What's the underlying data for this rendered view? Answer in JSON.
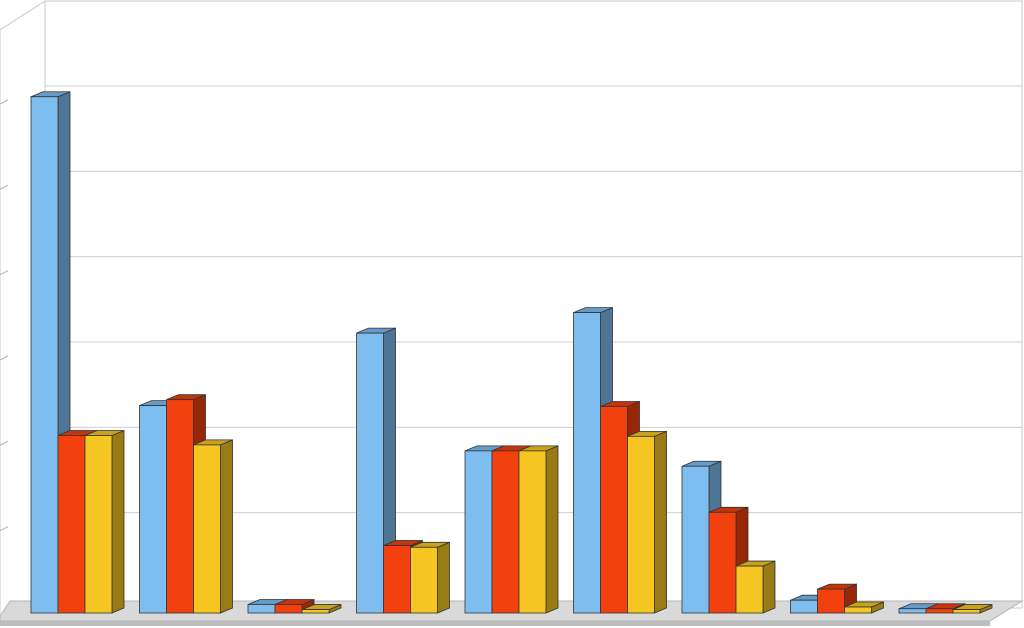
{
  "chart_data": {
    "type": "bar",
    "three_d": true,
    "grid": true,
    "legend": "none",
    "ylim": [
      0,
      6
    ],
    "categories": [
      "",
      "",
      "",
      "",
      "",
      "",
      "",
      "",
      ""
    ],
    "series": [
      {
        "color": "#7dbdf0",
        "values": [
          6.05,
          2.43,
          0.1,
          3.28,
          1.9,
          3.52,
          1.72,
          0.15,
          0.05
        ]
      },
      {
        "color": "#f2400f",
        "values": [
          2.08,
          2.5,
          0.1,
          0.79,
          1.9,
          2.42,
          1.18,
          0.28,
          0.05
        ]
      },
      {
        "color": "#f5c621",
        "values": [
          2.08,
          1.97,
          0.04,
          0.77,
          1.9,
          2.07,
          0.55,
          0.07,
          0.04
        ]
      }
    ]
  }
}
